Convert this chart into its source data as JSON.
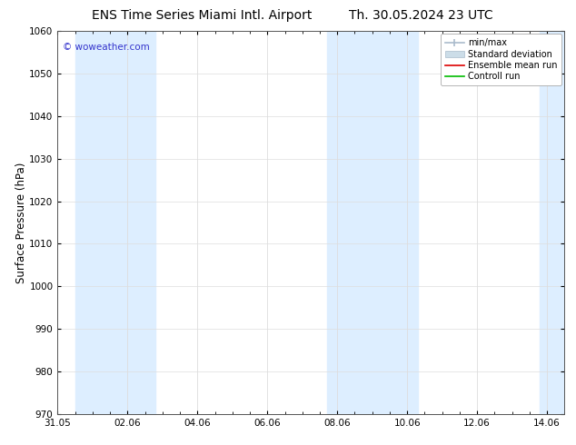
{
  "title_left": "ENS Time Series Miami Intl. Airport",
  "title_right": "Th. 30.05.2024 23 UTC",
  "ylabel": "Surface Pressure (hPa)",
  "ylim": [
    970,
    1060
  ],
  "yticks": [
    970,
    980,
    990,
    1000,
    1010,
    1020,
    1030,
    1040,
    1050,
    1060
  ],
  "xlim": [
    0,
    14.5
  ],
  "xtick_labels": [
    "31.05",
    "02.06",
    "04.06",
    "06.06",
    "08.06",
    "10.06",
    "12.06",
    "14.06"
  ],
  "xtick_positions": [
    0,
    2,
    4,
    6,
    8,
    10,
    12,
    14
  ],
  "shaded_bands": [
    {
      "x_start": 0.5,
      "x_end": 2.8,
      "color": "#ddeeff"
    },
    {
      "x_start": 7.7,
      "x_end": 10.3,
      "color": "#ddeeff"
    },
    {
      "x_start": 13.8,
      "x_end": 14.5,
      "color": "#ddeeff"
    }
  ],
  "watermark_text": "© woweather.com",
  "watermark_color": "#3333cc",
  "background_color": "#ffffff",
  "plot_bg_color": "#ffffff",
  "legend_items": [
    {
      "label": "min/max",
      "color": "#aabbcc",
      "type": "errorbar"
    },
    {
      "label": "Standard deviation",
      "color": "#ccdde8",
      "type": "fill"
    },
    {
      "label": "Ensemble mean run",
      "color": "#dd0000",
      "type": "line"
    },
    {
      "label": "Controll run",
      "color": "#00bb00",
      "type": "line"
    }
  ],
  "title_fontsize": 10,
  "tick_fontsize": 7.5,
  "ylabel_fontsize": 8.5,
  "legend_fontsize": 7,
  "border_color": "#555555",
  "grid_color": "#dddddd"
}
